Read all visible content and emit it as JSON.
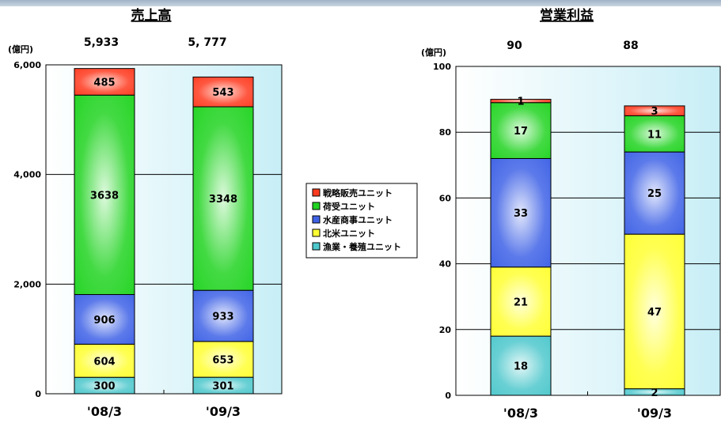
{
  "colors": {
    "fishery": "#4ec8cc",
    "northamerica": "#ffff33",
    "marine": "#3f62e6",
    "cargo": "#22d422",
    "strategic": "#ff3b1f"
  },
  "legend": {
    "items": [
      "戦略販売ユニット",
      "荷受ユニット",
      "水産商事ユニット",
      "北米ユニット",
      "漁業・養殖ユニット"
    ]
  },
  "chart_data": [
    {
      "type": "bar",
      "stacked": true,
      "title": "売上高",
      "unit_label": "(億円)",
      "categories": [
        "'08/3",
        "'09/3"
      ],
      "totals": [
        "5,933",
        "5, 777"
      ],
      "ylim": [
        0,
        6000
      ],
      "yticks": [
        "0",
        "2,000",
        "4,000",
        "6,000"
      ],
      "ytick_values": [
        0,
        2000,
        4000,
        6000
      ],
      "series": [
        {
          "name": "漁業・養殖ユニット",
          "color_key": "fishery",
          "values": [
            300,
            301
          ]
        },
        {
          "name": "北米ユニット",
          "color_key": "northamerica",
          "values": [
            604,
            653
          ]
        },
        {
          "name": "水産商事ユニット",
          "color_key": "marine",
          "values": [
            906,
            933
          ]
        },
        {
          "name": "荷受ユニット",
          "color_key": "cargo",
          "values": [
            3638,
            3348
          ]
        },
        {
          "name": "戦略販売ユニット",
          "color_key": "strategic",
          "values": [
            485,
            543
          ]
        }
      ]
    },
    {
      "type": "bar",
      "stacked": true,
      "title": "営業利益",
      "unit_label": "(億円)",
      "categories": [
        "'08/3",
        "'09/3"
      ],
      "totals": [
        "90",
        "88"
      ],
      "ylim": [
        0,
        100
      ],
      "yticks": [
        "0",
        "20",
        "40",
        "60",
        "80",
        "100"
      ],
      "ytick_values": [
        0,
        20,
        40,
        60,
        80,
        100
      ],
      "series": [
        {
          "name": "漁業・養殖ユニット",
          "color_key": "fishery",
          "values": [
            18,
            2
          ]
        },
        {
          "name": "北米ユニット",
          "color_key": "northamerica",
          "values": [
            21,
            47
          ]
        },
        {
          "name": "水産商事ユニット",
          "color_key": "marine",
          "values": [
            33,
            25
          ]
        },
        {
          "name": "荷受ユニット",
          "color_key": "cargo",
          "values": [
            17,
            11
          ]
        },
        {
          "name": "戦略販売ユニット",
          "color_key": "strategic",
          "values": [
            1,
            3
          ]
        }
      ]
    }
  ]
}
